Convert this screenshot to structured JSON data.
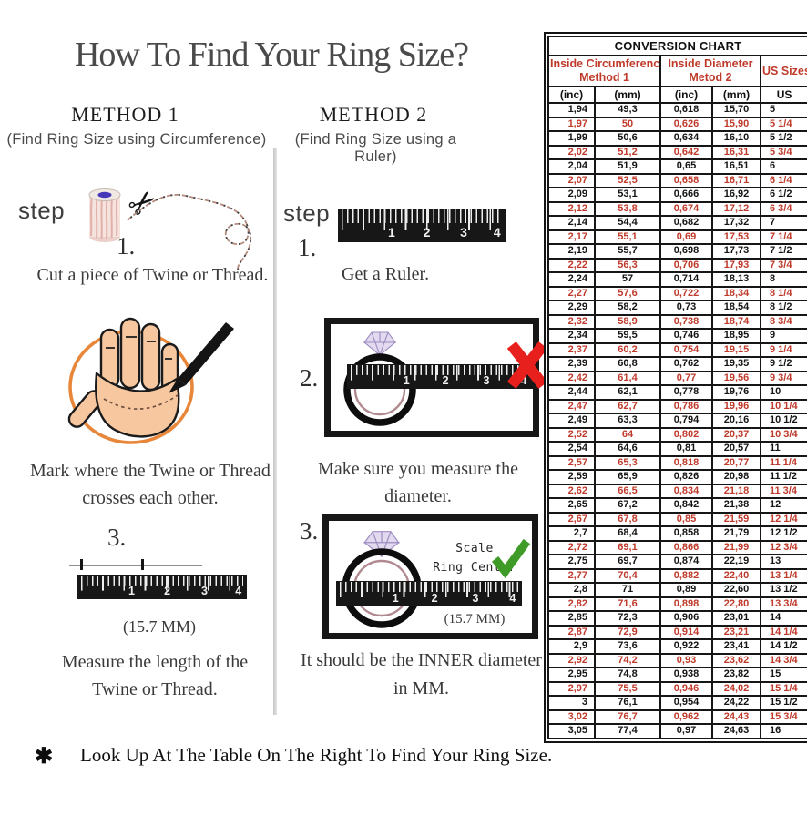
{
  "title": "How To Find Your Ring Size?",
  "footnote": {
    "bullet": "✱",
    "text": "Look Up At The Table On The Right To Find Your Ring Size."
  },
  "ruler_numbers": [
    "1",
    "2",
    "3",
    "4"
  ],
  "method1": {
    "heading": "METHOD 1",
    "subtitle": "(Find Ring Size using Circumference)",
    "step_label": "step",
    "steps": [
      {
        "num": "1.",
        "caption": "Cut a piece of Twine or Thread."
      },
      {
        "num": "2.",
        "caption_line1": "Mark where the Twine or Thread",
        "caption_line2": "crosses each other."
      },
      {
        "num": "3.",
        "measurement": "(15.7 MM)",
        "caption_line1": "Measure the length of the",
        "caption_line2": "Twine or Thread."
      }
    ]
  },
  "method2": {
    "heading": "METHOD 2",
    "subtitle": "(Find Ring Size using a Ruler)",
    "step_label": "step",
    "steps": [
      {
        "num": "1.",
        "caption": "Get a Ruler."
      },
      {
        "num": "2.",
        "caption": "Make sure you measure the diameter."
      },
      {
        "num": "3.",
        "scale_note_line1": "Scale",
        "scale_note_line2": "Ring Center",
        "measurement": "(15.7 MM)",
        "caption_line1": "It should be the INNER diameter",
        "caption_line2": "in MM."
      }
    ]
  },
  "conversion_table": {
    "title": "CONVERSION CHART",
    "group_headers": [
      {
        "line1": "Inside Circumference",
        "line2": "Method 1"
      },
      {
        "line1": "Inside Diameter",
        "line2": "Metod 2"
      },
      {
        "line1": "US Sizes",
        "line2": ""
      }
    ],
    "unit_headers": [
      "(inc)",
      "(mm)",
      "(inc)",
      "(mm)",
      "US"
    ],
    "alternating_red_rows": true,
    "rows": [
      [
        "1,94",
        "49,3",
        "0,618",
        "15,70",
        "5"
      ],
      [
        "1,97",
        "50",
        "0,626",
        "15,90",
        "5 1/4"
      ],
      [
        "1,99",
        "50,6",
        "0,634",
        "16,10",
        "5 1/2"
      ],
      [
        "2,02",
        "51,2",
        "0,642",
        "16,31",
        "5 3/4"
      ],
      [
        "2,04",
        "51,9",
        "0,65",
        "16,51",
        "6"
      ],
      [
        "2,07",
        "52,5",
        "0,658",
        "16,71",
        "6 1/4"
      ],
      [
        "2,09",
        "53,1",
        "0,666",
        "16,92",
        "6 1/2"
      ],
      [
        "2,12",
        "53,8",
        "0,674",
        "17,12",
        "6 3/4"
      ],
      [
        "2,14",
        "54,4",
        "0,682",
        "17,32",
        "7"
      ],
      [
        "2,17",
        "55,1",
        "0,69",
        "17,53",
        "7 1/4"
      ],
      [
        "2,19",
        "55,7",
        "0,698",
        "17,73",
        "7 1/2"
      ],
      [
        "2,22",
        "56,3",
        "0,706",
        "17,93",
        "7 3/4"
      ],
      [
        "2,24",
        "57",
        "0,714",
        "18,13",
        "8"
      ],
      [
        "2,27",
        "57,6",
        "0,722",
        "18,34",
        "8 1/4"
      ],
      [
        "2,29",
        "58,2",
        "0,73",
        "18,54",
        "8 1/2"
      ],
      [
        "2,32",
        "58,9",
        "0,738",
        "18,74",
        "8 3/4"
      ],
      [
        "2,34",
        "59,5",
        "0,746",
        "18,95",
        "9"
      ],
      [
        "2,37",
        "60,2",
        "0,754",
        "19,15",
        "9 1/4"
      ],
      [
        "2,39",
        "60,8",
        "0,762",
        "19,35",
        "9 1/2"
      ],
      [
        "2,42",
        "61,4",
        "0,77",
        "19,56",
        "9 3/4"
      ],
      [
        "2,44",
        "62,1",
        "0,778",
        "19,76",
        "10"
      ],
      [
        "2,47",
        "62,7",
        "0,786",
        "19,96",
        "10 1/4"
      ],
      [
        "2,49",
        "63,3",
        "0,794",
        "20,16",
        "10 1/2"
      ],
      [
        "2,52",
        "64",
        "0,802",
        "20,37",
        "10 3/4"
      ],
      [
        "2,54",
        "64,6",
        "0,81",
        "20,57",
        "11"
      ],
      [
        "2,57",
        "65,3",
        "0,818",
        "20,77",
        "11 1/4"
      ],
      [
        "2,59",
        "65,9",
        "0,826",
        "20,98",
        "11 1/2"
      ],
      [
        "2,62",
        "66,5",
        "0,834",
        "21,18",
        "11 3/4"
      ],
      [
        "2,65",
        "67,2",
        "0,842",
        "21,38",
        "12"
      ],
      [
        "2,67",
        "67,8",
        "0,85",
        "21,59",
        "12 1/4"
      ],
      [
        "2,7",
        "68,4",
        "0,858",
        "21,79",
        "12 1/2"
      ],
      [
        "2,72",
        "69,1",
        "0,866",
        "21,99",
        "12 3/4"
      ],
      [
        "2,75",
        "69,7",
        "0,874",
        "22,19",
        "13"
      ],
      [
        "2,77",
        "70,4",
        "0,882",
        "22,40",
        "13 1/4"
      ],
      [
        "2,8",
        "71",
        "0,89",
        "22,60",
        "13 1/2"
      ],
      [
        "2,82",
        "71,6",
        "0,898",
        "22,80",
        "13 3/4"
      ],
      [
        "2,85",
        "72,3",
        "0,906",
        "23,01",
        "14"
      ],
      [
        "2,87",
        "72,9",
        "0,914",
        "23,21",
        "14 1/4"
      ],
      [
        "2,9",
        "73,6",
        "0,922",
        "23,41",
        "14 1/2"
      ],
      [
        "2,92",
        "74,2",
        "0,93",
        "23,62",
        "14 3/4"
      ],
      [
        "2,95",
        "74,8",
        "0,938",
        "23,82",
        "15"
      ],
      [
        "2,97",
        "75,5",
        "0,946",
        "24,02",
        "15 1/4"
      ],
      [
        "3",
        "76,1",
        "0,954",
        "24,22",
        "15 1/2"
      ],
      [
        "3,02",
        "76,7",
        "0,962",
        "24,43",
        "15 3/4"
      ],
      [
        "3,05",
        "77,4",
        "0,97",
        "24,63",
        "16"
      ]
    ]
  },
  "colors": {
    "table_red": "#bf3a2b",
    "cross_red": "#e8201d",
    "check_green": "#3f9b28",
    "circle_orange": "#e8873a",
    "skin": "#f7c7a0",
    "ring_inner": "#b08a90",
    "diamond_fill": "#e3daf0",
    "diamond_stroke": "#9d8cc0",
    "twine_pink": "#e0b0aa"
  }
}
